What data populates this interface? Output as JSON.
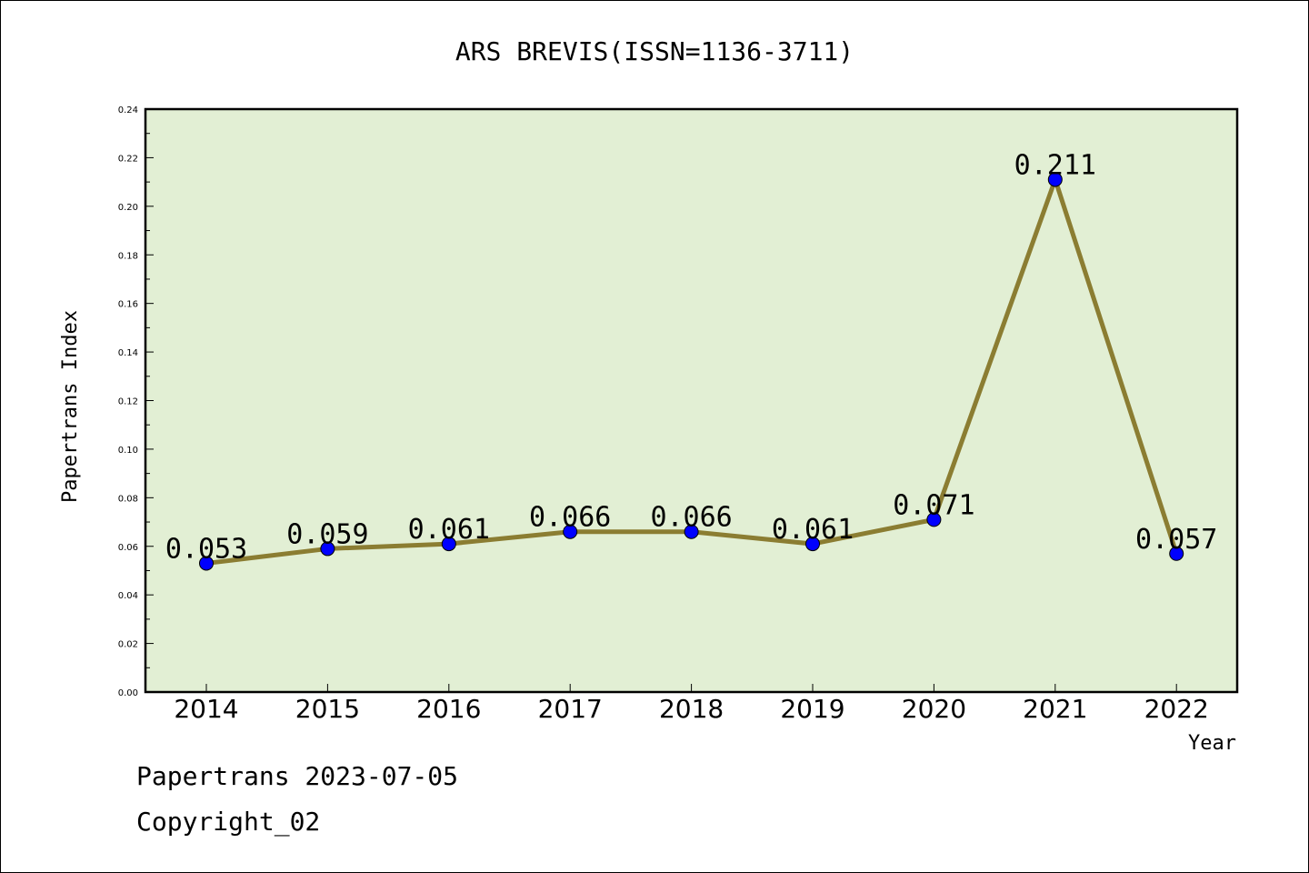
{
  "chart_data": {
    "type": "line",
    "title": "ARS BREVIS(ISSN=1136-3711)",
    "xlabel": "Year",
    "ylabel": "Papertrans Index",
    "categories": [
      "2014",
      "2015",
      "2016",
      "2017",
      "2018",
      "2019",
      "2020",
      "2021",
      "2022"
    ],
    "values": [
      0.053,
      0.059,
      0.061,
      0.066,
      0.066,
      0.061,
      0.071,
      0.211,
      0.057
    ],
    "data_labels": [
      "0.053",
      "0.059",
      "0.061",
      "0.066",
      "0.066",
      "0.061",
      "0.071",
      "0.211",
      "0.057"
    ],
    "ylim": [
      0,
      0.24
    ],
    "yticks": [
      "0.00",
      "0.02",
      "0.04",
      "0.06",
      "0.08",
      "0.10",
      "0.12",
      "0.14",
      "0.16",
      "0.18",
      "0.20",
      "0.22",
      "0.24"
    ],
    "grid": false,
    "colors": {
      "plot_background": "#e2efd4",
      "line": "#8b7d32",
      "marker": "#0000ff"
    }
  },
  "footer": {
    "line1": "Papertrans 2023-07-05",
    "line2": "Copyright_02"
  }
}
